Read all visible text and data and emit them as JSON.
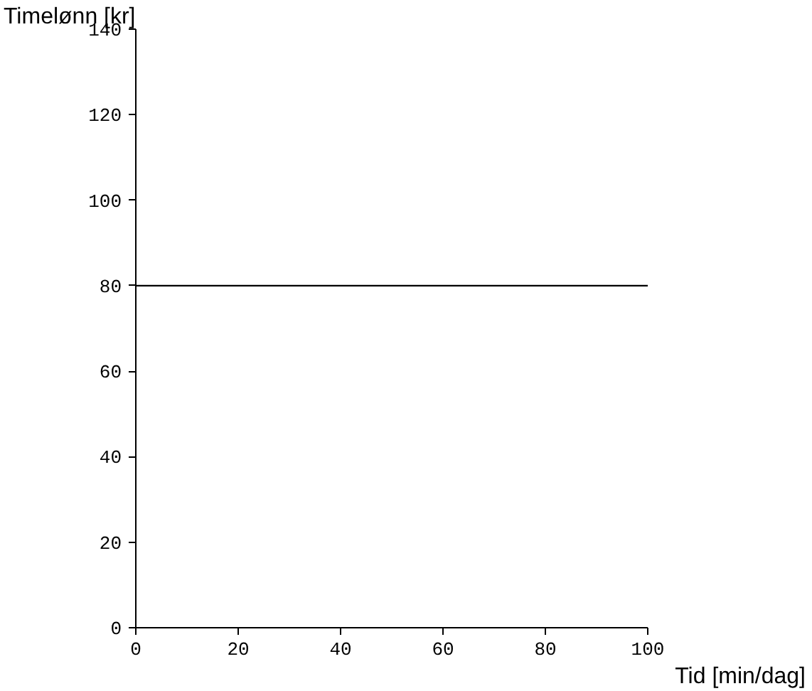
{
  "chart_data": {
    "type": "line",
    "xlabel": "Tid [min/dag]",
    "ylabel": "Timelønn [kr]",
    "x": [
      0,
      100
    ],
    "series": [
      {
        "color": "#000000",
        "values": [
          80,
          80
        ]
      }
    ],
    "xlim": [
      0,
      100
    ],
    "ylim": [
      0,
      140
    ],
    "xticks": [
      0,
      20,
      40,
      60,
      80,
      100
    ],
    "yticks": [
      0,
      20,
      40,
      60,
      80,
      100,
      120,
      140
    ],
    "grid": false,
    "marker": "none",
    "line_style": "solid"
  }
}
